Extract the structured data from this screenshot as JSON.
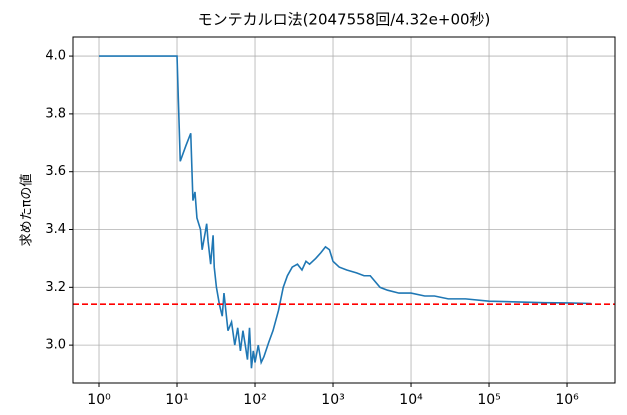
{
  "chart_data": {
    "type": "line",
    "title": "モンテカルロ法(2047558回/4.32e+00秒)",
    "y_label": "求めたπの値",
    "x": [
      1,
      10,
      11,
      13,
      15,
      16,
      17,
      18,
      20,
      21,
      23,
      24,
      25,
      27,
      29,
      30,
      32,
      35,
      38,
      40,
      45,
      50,
      55,
      60,
      65,
      70,
      75,
      80,
      85,
      90,
      95,
      100,
      110,
      120,
      130,
      150,
      170,
      200,
      230,
      260,
      300,
      350,
      400,
      450,
      500,
      600,
      700,
      800,
      900,
      1000,
      1200,
      1500,
      2000,
      2500,
      3000,
      4000,
      5000,
      7000,
      10000,
      15000,
      20000,
      30000,
      50000,
      100000,
      200000,
      500000,
      1000000,
      2047558
    ],
    "series": [
      {
        "name": "π",
        "color": "#1f77b4",
        "values": [
          4.0,
          4.0,
          3.636,
          3.69,
          3.733,
          3.5,
          3.53,
          3.44,
          3.4,
          3.33,
          3.39,
          3.42,
          3.36,
          3.28,
          3.38,
          3.27,
          3.2,
          3.14,
          3.1,
          3.18,
          3.05,
          3.08,
          3.0,
          3.06,
          2.98,
          3.05,
          3.0,
          2.95,
          3.06,
          2.92,
          2.98,
          2.94,
          3.0,
          2.94,
          2.96,
          3.01,
          3.05,
          3.12,
          3.2,
          3.24,
          3.27,
          3.28,
          3.26,
          3.29,
          3.28,
          3.3,
          3.32,
          3.34,
          3.33,
          3.29,
          3.27,
          3.26,
          3.25,
          3.24,
          3.24,
          3.2,
          3.19,
          3.18,
          3.18,
          3.17,
          3.17,
          3.16,
          3.16,
          3.152,
          3.15,
          3.147,
          3.146,
          3.144
        ]
      }
    ],
    "hline": {
      "value": 3.14159,
      "color": "#ff0000"
    },
    "x_log": true,
    "xlim": [
      0.464,
      4120000
    ],
    "xticks": [
      {
        "value": 1,
        "label": "10⁰"
      },
      {
        "value": 10,
        "label": "10¹"
      },
      {
        "value": 100,
        "label": "10²"
      },
      {
        "value": 1000,
        "label": "10³"
      },
      {
        "value": 10000,
        "label": "10⁴"
      },
      {
        "value": 100000,
        "label": "10⁵"
      },
      {
        "value": 1000000,
        "label": "10⁶"
      }
    ],
    "ylim": [
      2.869,
      4.066
    ],
    "yticks": [
      {
        "value": 3.0,
        "label": "3.0"
      },
      3.2,
      3.4,
      3.6,
      3.8,
      {
        "value": 4.0,
        "label": "4.0"
      }
    ],
    "grid": true
  }
}
